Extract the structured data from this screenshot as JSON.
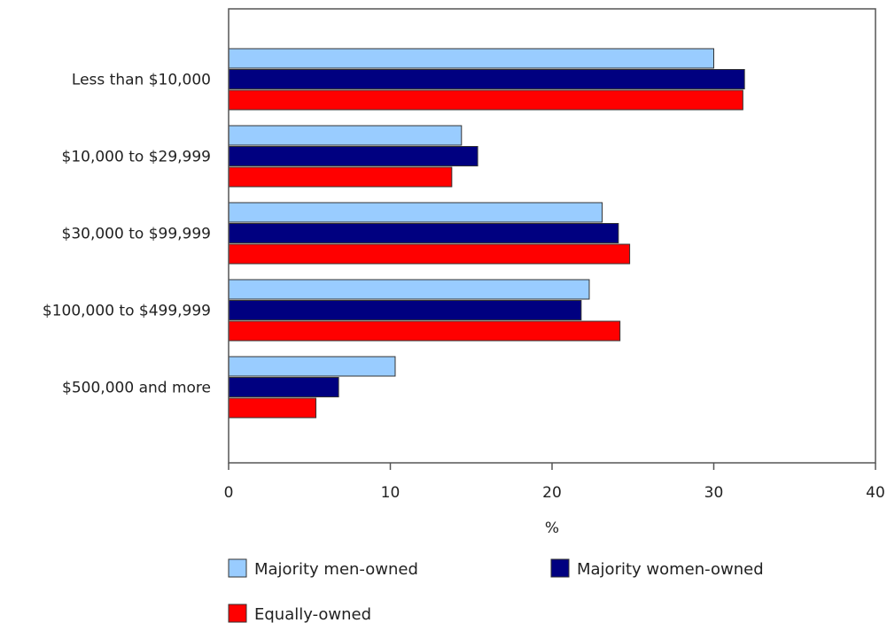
{
  "chart_data": {
    "type": "bar",
    "orientation": "horizontal",
    "categories": [
      "Less than $10,000",
      "$10,000 to $29,999",
      "$30,000 to $99,999",
      "$100,000 to $499,999",
      "$500,000 and more"
    ],
    "series": [
      {
        "name": "Majority men-owned",
        "color": "#99ccff",
        "values": [
          30.0,
          14.4,
          23.1,
          22.3,
          10.3
        ]
      },
      {
        "name": "Majority women-owned",
        "color": "#000080",
        "values": [
          31.9,
          15.4,
          24.1,
          21.8,
          6.8
        ]
      },
      {
        "name": "Equally-owned",
        "color": "#ff0000",
        "values": [
          31.8,
          13.8,
          24.8,
          24.2,
          5.4
        ]
      }
    ],
    "xlabel": "%",
    "ylabel": "",
    "xlim": [
      0,
      40
    ],
    "xticks": [
      "0",
      "10",
      "20",
      "30",
      "40"
    ],
    "grid": false,
    "legend_placement": "bottom-left"
  }
}
